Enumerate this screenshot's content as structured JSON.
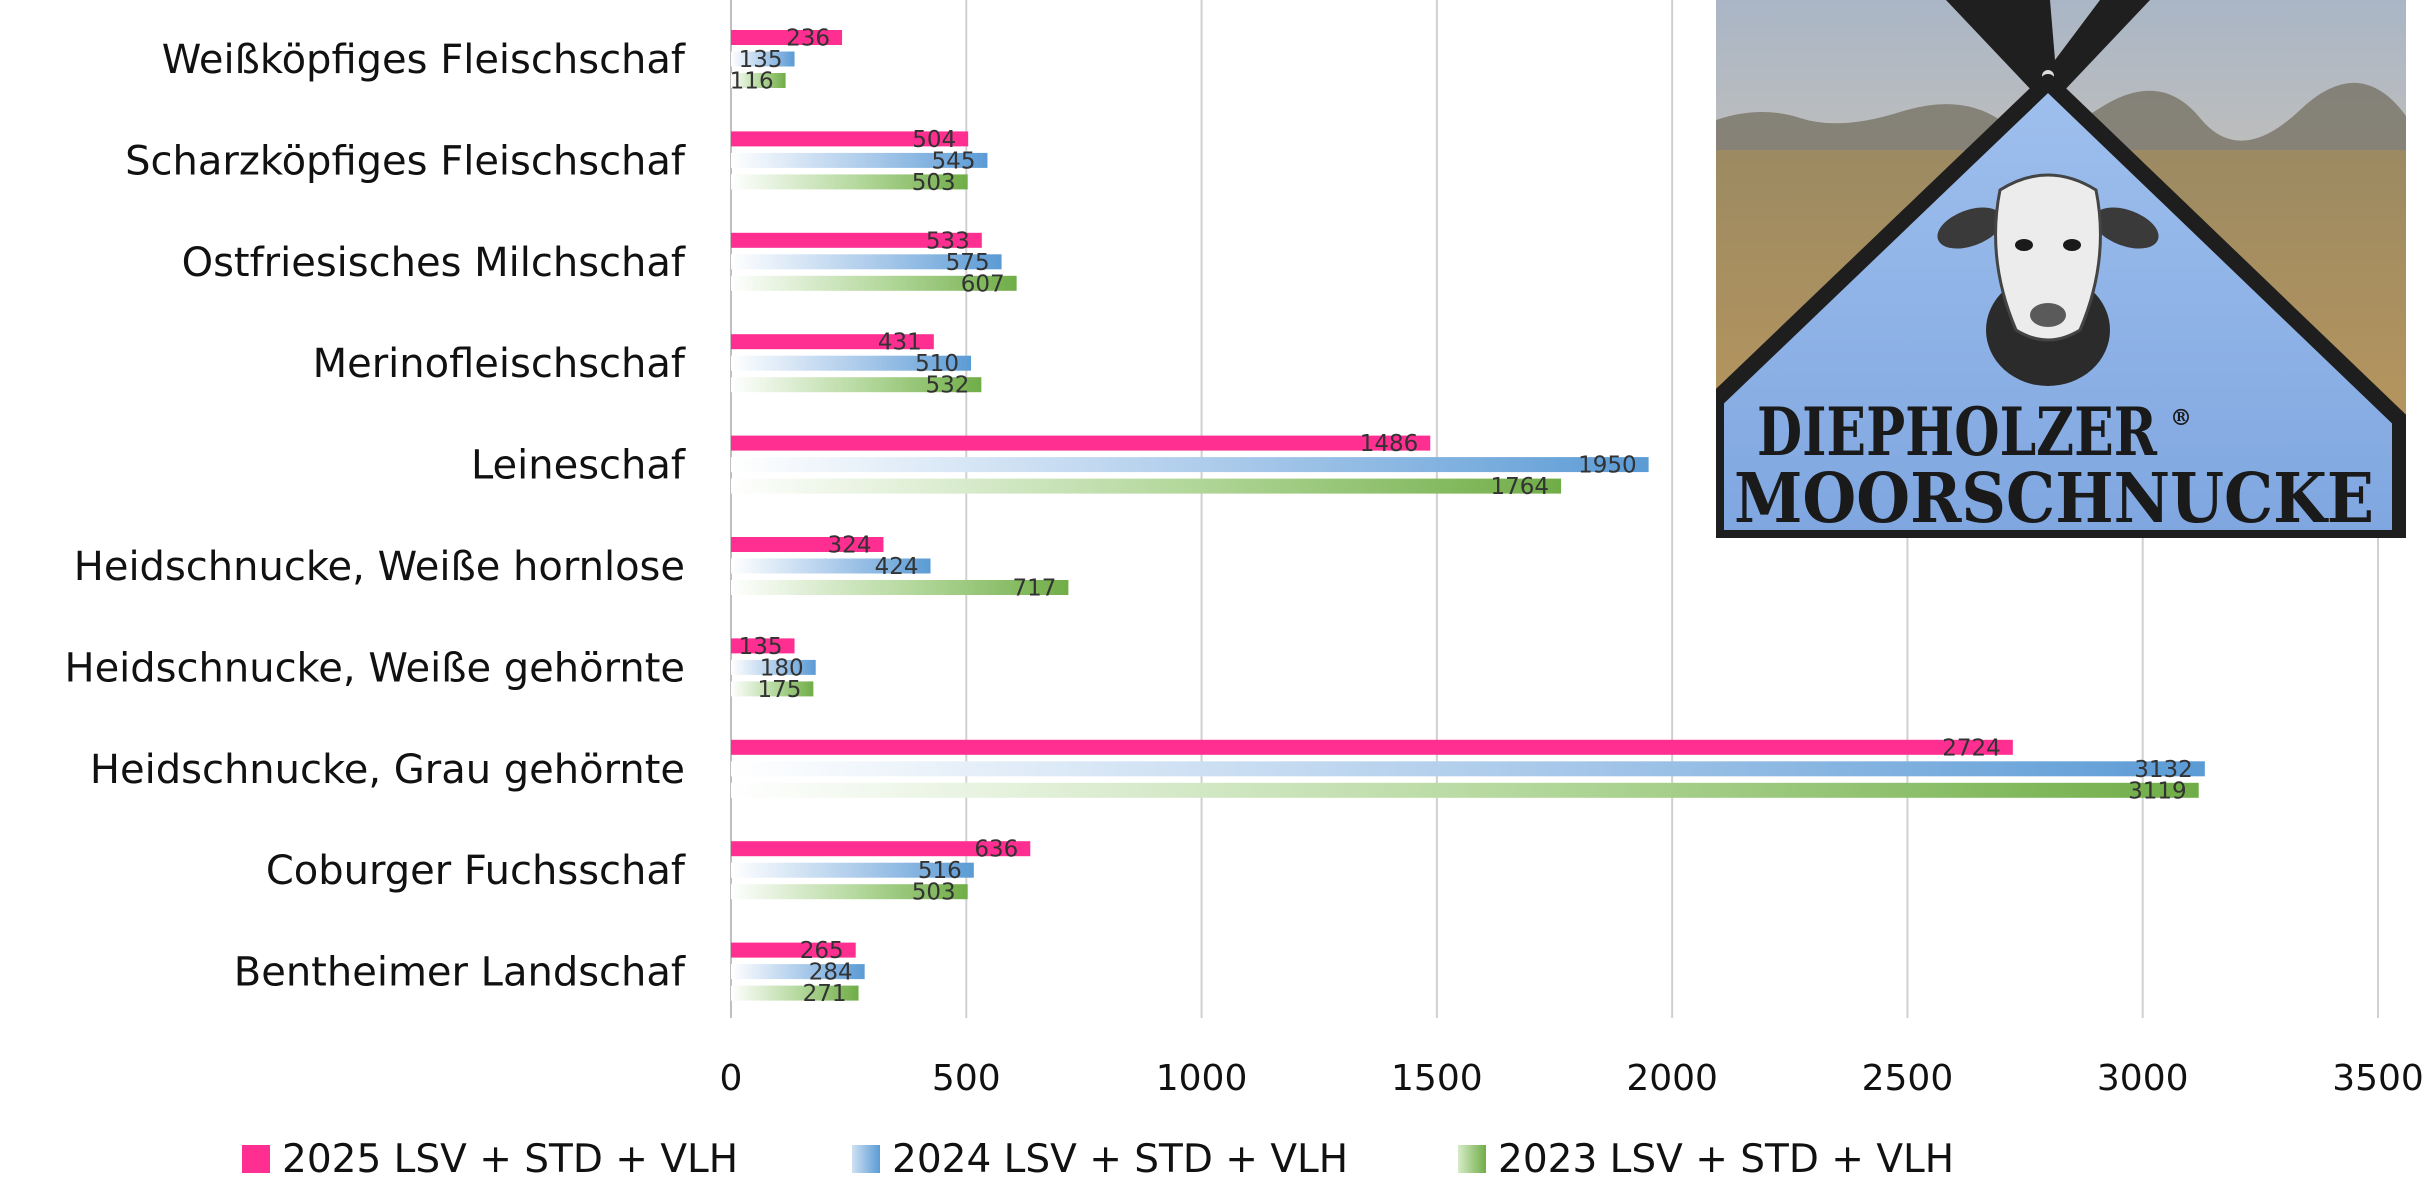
{
  "chart_data": {
    "type": "bar",
    "orientation": "horizontal",
    "categories": [
      "Weißköpfiges Fleischschaf",
      "Scharzköpfiges Fleischschaf",
      "Ostfriesisches Milchschaf",
      "Merinofleischschaf",
      "Leineschaf",
      "Heidschnucke, Weiße hornlose",
      "Heidschnucke, Weiße gehörnte",
      "Heidschnucke, Grau gehörnte",
      "Coburger Fuchsschaf",
      "Bentheimer Landschaf"
    ],
    "series": [
      {
        "name": "2025 LSV + STD + VLH",
        "color": "#ff2f92",
        "values": [
          236,
          504,
          533,
          431,
          1486,
          324,
          135,
          2724,
          636,
          265
        ]
      },
      {
        "name": "2024 LSV + STD + VLH",
        "color": "#5b9bd5",
        "values": [
          135,
          545,
          575,
          510,
          1950,
          424,
          180,
          3132,
          516,
          284
        ]
      },
      {
        "name": "2023 LSV + STD + VLH",
        "color": "#70ad47",
        "values": [
          116,
          503,
          607,
          532,
          1764,
          717,
          175,
          3119,
          503,
          271
        ]
      }
    ],
    "xlim": [
      0,
      3500
    ],
    "xticks": [
      "0",
      "500",
      "1000",
      "1500",
      "2000",
      "2500",
      "3000",
      "3500"
    ],
    "grid": true,
    "legend_position": "bottom",
    "title": "",
    "xlabel": "",
    "ylabel": ""
  },
  "logo": {
    "line1": "DIEPHOLZER",
    "registered": "®",
    "line2": "MOORSCHNUCKE",
    "icon": "sheep-head-icon"
  }
}
